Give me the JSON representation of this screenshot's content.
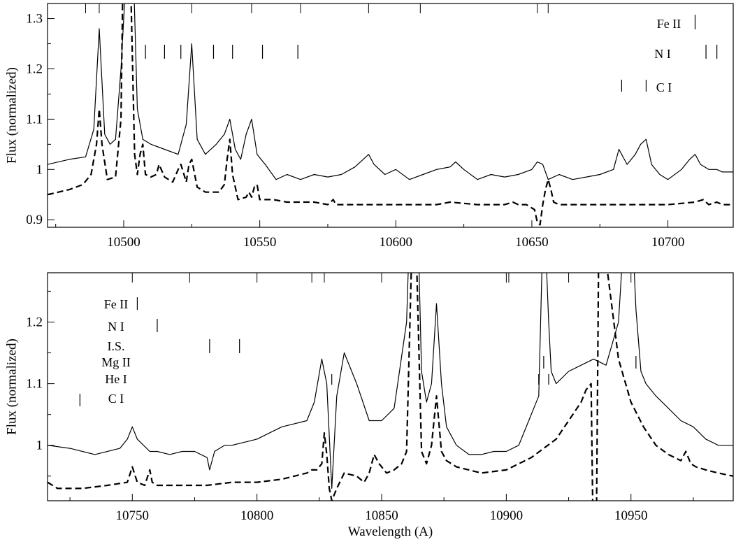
{
  "chart_data": [
    {
      "type": "line",
      "title": "",
      "xlabel": "",
      "ylabel": "Flux (normalized)",
      "xlim": [
        10472,
        10724
      ],
      "ylim": [
        0.885,
        1.33
      ],
      "xticks": [
        10500,
        10550,
        10600,
        10650,
        10700
      ],
      "yticks": [
        0.9,
        1,
        1.1,
        1.2,
        1.3
      ],
      "ytick_labels": [
        "0.9",
        "1",
        "1.1",
        "1.2",
        "1.3"
      ],
      "series": [
        {
          "style": "solid",
          "x": [
            10472,
            10480,
            10486,
            10489,
            10491,
            10493,
            10495,
            10497,
            10499,
            10501,
            10503,
            10505,
            10507,
            10510,
            10515,
            10520,
            10523,
            10525,
            10527,
            10530,
            10534,
            10537,
            10539,
            10541,
            10543,
            10545,
            10547,
            10549,
            10552,
            10556,
            10560,
            10565,
            10570,
            10575,
            10580,
            10585,
            10588,
            10590,
            10592,
            10596,
            10600,
            10605,
            10610,
            10615,
            10620,
            10622,
            10625,
            10630,
            10635,
            10640,
            10645,
            10650,
            10652,
            10654,
            10656,
            10660,
            10665,
            10670,
            10675,
            10680,
            10682,
            10685,
            10688,
            10690,
            10692,
            10694,
            10697,
            10700,
            10705,
            10708,
            10710,
            10712,
            10715,
            10718,
            10720,
            10724
          ],
          "y": [
            1.01,
            1.02,
            1.025,
            1.08,
            1.28,
            1.07,
            1.05,
            1.06,
            1.2,
            1.4,
            1.5,
            1.12,
            1.06,
            1.05,
            1.04,
            1.03,
            1.09,
            1.25,
            1.06,
            1.03,
            1.05,
            1.07,
            1.1,
            1.04,
            1.02,
            1.07,
            1.1,
            1.03,
            1.01,
            0.98,
            0.99,
            0.98,
            0.99,
            0.985,
            0.99,
            1.005,
            1.02,
            1.03,
            1.01,
            0.99,
            1.0,
            0.98,
            0.99,
            1.0,
            1.005,
            1.015,
            1.0,
            0.98,
            0.99,
            0.985,
            0.99,
            1.0,
            1.015,
            1.01,
            0.98,
            0.99,
            0.98,
            0.985,
            0.99,
            1.0,
            1.04,
            1.01,
            1.03,
            1.05,
            1.06,
            1.01,
            0.99,
            0.98,
            1.0,
            1.02,
            1.03,
            1.01,
            1.0,
            1.0,
            0.995,
            0.995
          ]
        },
        {
          "style": "dashed",
          "x": [
            10472,
            10480,
            10485,
            10488,
            10490,
            10491,
            10492,
            10494,
            10497,
            10499,
            10500,
            10502,
            10504,
            10505,
            10506,
            10507,
            10508,
            10510,
            10512,
            10513,
            10515,
            10518,
            10520,
            10521,
            10523,
            10524,
            10525,
            10527,
            10530,
            10535,
            10537,
            10538,
            10539,
            10540,
            10542,
            10545,
            10546,
            10547,
            10548,
            10549,
            10550,
            10555,
            10560,
            10570,
            10575,
            10577,
            10578,
            10580,
            10590,
            10600,
            10615,
            10620,
            10630,
            10640,
            10643,
            10645,
            10648,
            10651,
            10652,
            10653,
            10654,
            10655,
            10656,
            10657,
            10658,
            10660,
            10670,
            10680,
            10690,
            10700,
            10710,
            10713,
            10715,
            10718,
            10720,
            10724
          ],
          "y": [
            0.95,
            0.96,
            0.97,
            0.99,
            1.05,
            1.12,
            1.05,
            0.98,
            0.985,
            1.1,
            1.5,
            1.5,
            1.03,
            0.99,
            1.03,
            1.05,
            0.99,
            0.985,
            0.99,
            1.01,
            0.985,
            0.975,
            1.0,
            1.01,
            0.975,
            1.01,
            1.02,
            0.965,
            0.955,
            0.955,
            0.97,
            1.02,
            1.06,
            0.99,
            0.94,
            0.945,
            0.955,
            0.945,
            0.965,
            0.97,
            0.94,
            0.94,
            0.935,
            0.935,
            0.93,
            0.94,
            0.93,
            0.93,
            0.93,
            0.93,
            0.93,
            0.935,
            0.93,
            0.93,
            0.935,
            0.93,
            0.93,
            0.92,
            0.895,
            0.89,
            0.93,
            0.96,
            0.98,
            0.96,
            0.935,
            0.93,
            0.93,
            0.93,
            0.93,
            0.93,
            0.935,
            0.94,
            0.93,
            0.935,
            0.93,
            0.93
          ]
        }
      ],
      "top_ticks": [
        10486,
        10491,
        10525,
        10547,
        10565,
        10590,
        10609,
        10652,
        10656
      ],
      "line_ids": [
        {
          "label": "Fe II",
          "wavelengths": [
            10710
          ]
        },
        {
          "label": "N I",
          "wavelengths": [
            10508,
            10515,
            10521,
            10533,
            10540,
            10551,
            10564,
            10714,
            10718
          ]
        },
        {
          "label": "C I",
          "wavelengths": [
            10683,
            10692
          ]
        }
      ]
    },
    {
      "type": "line",
      "title": "",
      "xlabel": "Wavelength (A)",
      "ylabel": "Flux (normalized)",
      "xlim": [
        10716,
        10991
      ],
      "ylim": [
        0.91,
        1.28
      ],
      "xticks": [
        10750,
        10800,
        10850,
        10900,
        10950
      ],
      "yticks": [
        1,
        1.1,
        1.2
      ],
      "ytick_labels": [
        "1",
        "1.1",
        "1.2"
      ],
      "series": [
        {
          "style": "solid",
          "x": [
            10716,
            10725,
            10735,
            10745,
            10748,
            10750,
            10752,
            10757,
            10760,
            10765,
            10770,
            10775,
            10780,
            10781,
            10783,
            10787,
            10790,
            10795,
            10800,
            10805,
            10810,
            10815,
            10820,
            10823,
            10826,
            10828,
            10830,
            10832,
            10835,
            10840,
            10845,
            10850,
            10855,
            10860,
            10862,
            10864,
            10866,
            10868,
            10870,
            10872,
            10874,
            10876,
            10880,
            10885,
            10890,
            10895,
            10900,
            10905,
            10910,
            10913,
            10915,
            10917,
            10918,
            10920,
            10925,
            10930,
            10935,
            10940,
            10945,
            10948,
            10950,
            10952,
            10954,
            10956,
            10960,
            10965,
            10970,
            10975,
            10980,
            10985,
            10991
          ],
          "y": [
            1.0,
            0.995,
            0.985,
            0.995,
            1.01,
            1.03,
            1.01,
            0.99,
            0.99,
            0.985,
            0.99,
            0.99,
            0.98,
            0.96,
            0.99,
            1.0,
            1.0,
            1.005,
            1.01,
            1.02,
            1.03,
            1.035,
            1.04,
            1.07,
            1.14,
            1.1,
            0.93,
            1.08,
            1.15,
            1.1,
            1.04,
            1.04,
            1.06,
            1.2,
            1.45,
            1.45,
            1.12,
            1.07,
            1.1,
            1.23,
            1.1,
            1.03,
            1.0,
            0.985,
            0.985,
            0.99,
            0.99,
            1.0,
            1.05,
            1.08,
            1.4,
            1.2,
            1.12,
            1.1,
            1.12,
            1.13,
            1.14,
            1.13,
            1.2,
            1.4,
            1.4,
            1.22,
            1.12,
            1.1,
            1.08,
            1.06,
            1.04,
            1.03,
            1.01,
            1.0,
            1.0
          ]
        },
        {
          "style": "dashed",
          "x": [
            10716,
            10720,
            10730,
            10740,
            10748,
            10750,
            10752,
            10755,
            10757,
            10758,
            10760,
            10770,
            10780,
            10790,
            10800,
            10810,
            10815,
            10820,
            10822,
            10824,
            10826,
            10827,
            10828,
            10829,
            10830,
            10832,
            10835,
            10840,
            10843,
            10845,
            10847,
            10849,
            10852,
            10855,
            10858,
            10860,
            10862,
            10864,
            10866,
            10868,
            10870,
            10872,
            10874,
            10876,
            10880,
            10890,
            10900,
            10910,
            10920,
            10925,
            10930,
            10932,
            10934,
            10935,
            10936,
            10937,
            10940,
            10945,
            10950,
            10955,
            10960,
            10965,
            10970,
            10972,
            10974,
            10976,
            10980,
            10985,
            10991
          ],
          "y": [
            0.94,
            0.93,
            0.93,
            0.935,
            0.94,
            0.965,
            0.94,
            0.935,
            0.96,
            0.94,
            0.935,
            0.935,
            0.935,
            0.94,
            0.94,
            0.945,
            0.95,
            0.955,
            0.96,
            0.96,
            0.97,
            1.02,
            0.985,
            0.93,
            0.91,
            0.93,
            0.955,
            0.95,
            0.94,
            0.955,
            0.985,
            0.97,
            0.955,
            0.96,
            0.97,
            0.99,
            1.3,
            1.3,
            0.99,
            0.97,
            1.0,
            1.08,
            0.99,
            0.975,
            0.965,
            0.955,
            0.96,
            0.98,
            1.01,
            1.04,
            1.07,
            1.09,
            1.1,
            0.8,
            0.8,
            1.3,
            1.3,
            1.14,
            1.07,
            1.03,
            1.0,
            0.985,
            0.975,
            0.99,
            0.97,
            0.965,
            0.96,
            0.955,
            0.95
          ]
        }
      ],
      "top_ticks": [
        10750,
        10773,
        10800,
        10822,
        10827,
        10850,
        10900,
        10901,
        10925,
        10950
      ],
      "line_ids": [
        {
          "label": "Fe II",
          "wavelengths": [
            10752
          ]
        },
        {
          "label": "N I",
          "wavelengths": [
            10760
          ]
        },
        {
          "label": "I.S.",
          "wavelengths": [
            10781,
            10793
          ]
        },
        {
          "label": "Mg II",
          "wavelengths": [
            10915,
            10952
          ]
        },
        {
          "label": "He I",
          "wavelengths": [
            10830,
            10913,
            10917
          ]
        },
        {
          "label": "C I",
          "wavelengths": [
            10729
          ]
        }
      ]
    }
  ]
}
